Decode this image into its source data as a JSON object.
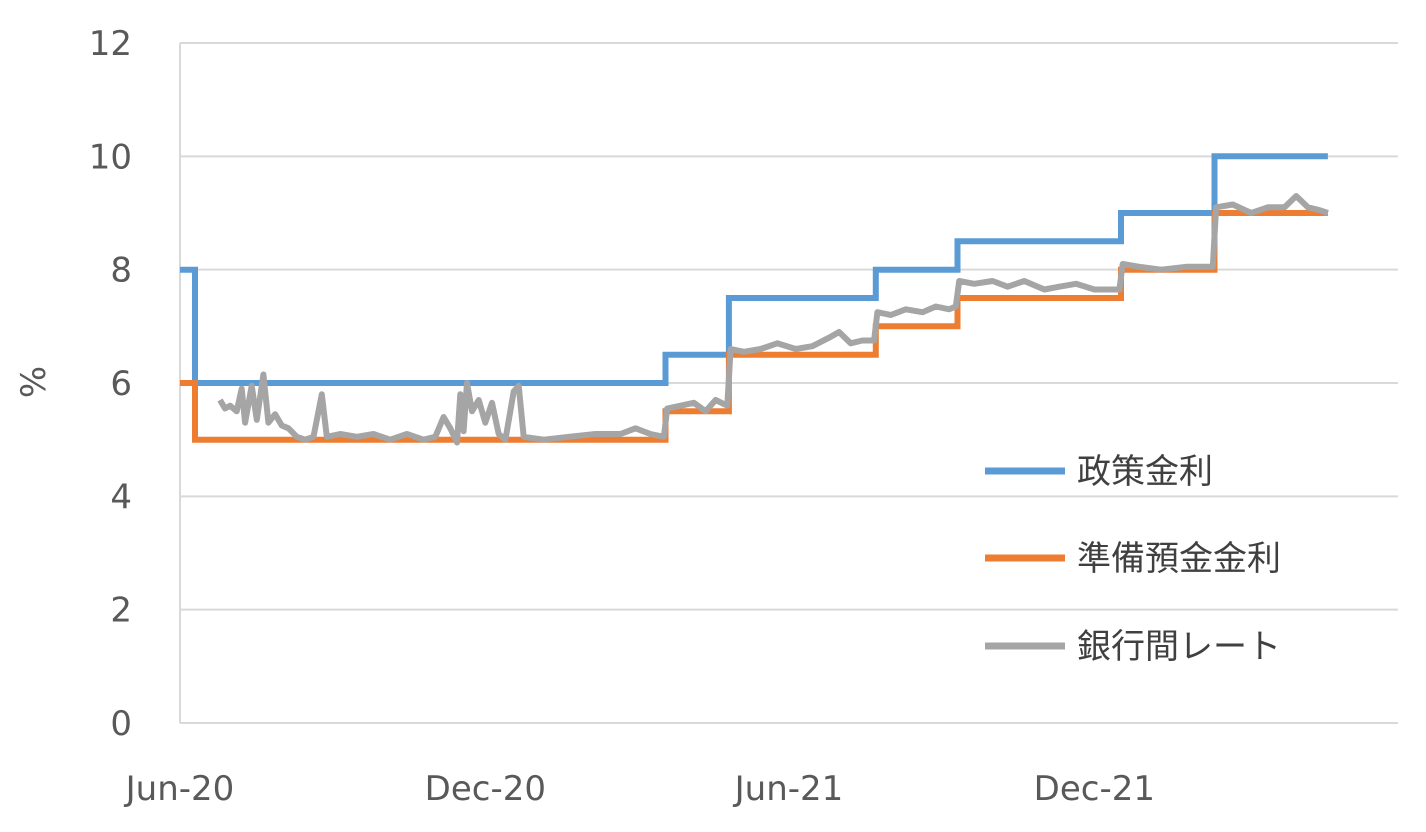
{
  "chart_data": {
    "type": "line",
    "title": "",
    "xlabel": "",
    "ylabel": "%",
    "ylim": [
      0,
      12
    ],
    "yticks": [
      "0",
      "2",
      "4",
      "6",
      "8",
      "10",
      "12"
    ],
    "xlim": [
      "2020-06-01",
      "2022-06-01"
    ],
    "xticks": [
      {
        "label": "Jun-20",
        "date": "2020-06-01"
      },
      {
        "label": "Dec-20",
        "date": "2020-12-01"
      },
      {
        "label": "Jun-21",
        "date": "2021-06-01"
      },
      {
        "label": "Dec-21",
        "date": "2021-12-01"
      }
    ],
    "grid": true,
    "legend_position": "right",
    "series": [
      {
        "name": "政策金利",
        "color": "#5B9BD5",
        "step": true,
        "points": [
          [
            "2020-06-01",
            8.0
          ],
          [
            "2020-06-10",
            6.0
          ],
          [
            "2021-03-19",
            6.5
          ],
          [
            "2021-04-26",
            7.5
          ],
          [
            "2021-07-23",
            8.0
          ],
          [
            "2021-09-10",
            8.5
          ],
          [
            "2021-12-17",
            9.0
          ],
          [
            "2022-02-11",
            10.0
          ],
          [
            "2022-04-20",
            10.0
          ]
        ]
      },
      {
        "name": "準備預金金利",
        "color": "#ED7D31",
        "step": true,
        "points": [
          [
            "2020-06-01",
            6.0
          ],
          [
            "2020-06-10",
            5.0
          ],
          [
            "2021-03-19",
            5.5
          ],
          [
            "2021-04-26",
            6.5
          ],
          [
            "2021-07-23",
            7.0
          ],
          [
            "2021-09-10",
            7.5
          ],
          [
            "2021-12-17",
            8.0
          ],
          [
            "2022-02-11",
            9.0
          ],
          [
            "2022-04-20",
            9.0
          ]
        ]
      },
      {
        "name": "銀行間レート",
        "color": "#A5A5A5",
        "step": false,
        "points": [
          [
            "2020-06-25",
            5.7
          ],
          [
            "2020-06-28",
            5.55
          ],
          [
            "2020-07-01",
            5.6
          ],
          [
            "2020-07-05",
            5.5
          ],
          [
            "2020-07-08",
            5.9
          ],
          [
            "2020-07-10",
            5.3
          ],
          [
            "2020-07-14",
            5.95
          ],
          [
            "2020-07-17",
            5.35
          ],
          [
            "2020-07-21",
            6.15
          ],
          [
            "2020-07-24",
            5.3
          ],
          [
            "2020-07-28",
            5.45
          ],
          [
            "2020-08-01",
            5.25
          ],
          [
            "2020-08-05",
            5.2
          ],
          [
            "2020-08-10",
            5.05
          ],
          [
            "2020-08-15",
            5.0
          ],
          [
            "2020-08-20",
            5.05
          ],
          [
            "2020-08-25",
            5.8
          ],
          [
            "2020-08-28",
            5.05
          ],
          [
            "2020-09-05",
            5.1
          ],
          [
            "2020-09-15",
            5.05
          ],
          [
            "2020-09-25",
            5.1
          ],
          [
            "2020-10-05",
            5.0
          ],
          [
            "2020-10-15",
            5.1
          ],
          [
            "2020-10-25",
            5.0
          ],
          [
            "2020-11-01",
            5.05
          ],
          [
            "2020-11-06",
            5.4
          ],
          [
            "2020-11-10",
            5.2
          ],
          [
            "2020-11-14",
            4.95
          ],
          [
            "2020-11-16",
            5.8
          ],
          [
            "2020-11-18",
            5.15
          ],
          [
            "2020-11-20",
            6.0
          ],
          [
            "2020-11-23",
            5.5
          ],
          [
            "2020-11-27",
            5.7
          ],
          [
            "2020-12-01",
            5.3
          ],
          [
            "2020-12-05",
            5.65
          ],
          [
            "2020-12-09",
            5.1
          ],
          [
            "2020-12-13",
            5.0
          ],
          [
            "2020-12-18",
            5.85
          ],
          [
            "2020-12-21",
            5.95
          ],
          [
            "2020-12-24",
            5.05
          ],
          [
            "2021-01-05",
            5.0
          ],
          [
            "2021-01-20",
            5.05
          ],
          [
            "2021-02-05",
            5.1
          ],
          [
            "2021-02-20",
            5.1
          ],
          [
            "2021-03-01",
            5.2
          ],
          [
            "2021-03-10",
            5.1
          ],
          [
            "2021-03-18",
            5.05
          ],
          [
            "2021-03-20",
            5.55
          ],
          [
            "2021-03-28",
            5.6
          ],
          [
            "2021-04-05",
            5.65
          ],
          [
            "2021-04-12",
            5.5
          ],
          [
            "2021-04-18",
            5.7
          ],
          [
            "2021-04-25",
            5.6
          ],
          [
            "2021-04-27",
            6.6
          ],
          [
            "2021-05-05",
            6.55
          ],
          [
            "2021-05-15",
            6.6
          ],
          [
            "2021-05-25",
            6.7
          ],
          [
            "2021-06-05",
            6.6
          ],
          [
            "2021-06-15",
            6.65
          ],
          [
            "2021-06-25",
            6.8
          ],
          [
            "2021-07-01",
            6.9
          ],
          [
            "2021-07-08",
            6.7
          ],
          [
            "2021-07-15",
            6.75
          ],
          [
            "2021-07-22",
            6.75
          ],
          [
            "2021-07-24",
            7.25
          ],
          [
            "2021-08-01",
            7.2
          ],
          [
            "2021-08-10",
            7.3
          ],
          [
            "2021-08-20",
            7.25
          ],
          [
            "2021-08-28",
            7.35
          ],
          [
            "2021-09-05",
            7.3
          ],
          [
            "2021-09-09",
            7.35
          ],
          [
            "2021-09-11",
            7.8
          ],
          [
            "2021-09-20",
            7.75
          ],
          [
            "2021-10-01",
            7.8
          ],
          [
            "2021-10-10",
            7.7
          ],
          [
            "2021-10-20",
            7.8
          ],
          [
            "2021-11-01",
            7.65
          ],
          [
            "2021-11-10",
            7.7
          ],
          [
            "2021-11-20",
            7.75
          ],
          [
            "2021-12-01",
            7.65
          ],
          [
            "2021-12-10",
            7.65
          ],
          [
            "2021-12-16",
            7.65
          ],
          [
            "2021-12-18",
            8.1
          ],
          [
            "2021-12-28",
            8.05
          ],
          [
            "2022-01-10",
            8.0
          ],
          [
            "2022-01-25",
            8.05
          ],
          [
            "2022-02-10",
            8.05
          ],
          [
            "2022-02-12",
            9.1
          ],
          [
            "2022-02-22",
            9.15
          ],
          [
            "2022-03-05",
            9.0
          ],
          [
            "2022-03-15",
            9.1
          ],
          [
            "2022-03-25",
            9.1
          ],
          [
            "2022-04-01",
            9.3
          ],
          [
            "2022-04-08",
            9.1
          ],
          [
            "2022-04-15",
            9.05
          ],
          [
            "2022-04-20",
            9.0
          ]
        ]
      }
    ]
  }
}
